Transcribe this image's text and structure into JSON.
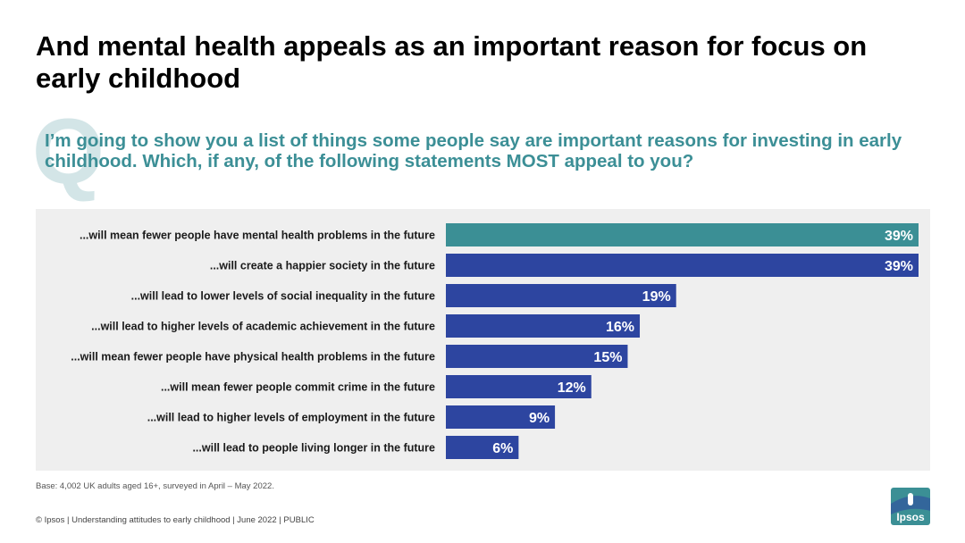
{
  "title": "And mental health appeals as an important reason for focus on early childhood",
  "question_mark": "Q",
  "question": "I’m going to show you a list of things some people say are important reasons for investing in early childhood. Which, if any, of the following statements MOST appeal to you?",
  "base_note": "Base: 4,002 UK adults aged 16+, surveyed in April – May 2022.",
  "footer": "© Ipsos | Understanding attitudes to early childhood | June 2022 | PUBLIC",
  "logo_text": "Ipsos",
  "colors": {
    "highlight_bar": "#3b8f95",
    "bar": "#2d45a0",
    "panel": "#efefef",
    "logo_bg": "#3b8f95",
    "logo_band": "#2d45a0"
  },
  "chart_data": {
    "type": "bar",
    "orientation": "horizontal",
    "categories": [
      "...will mean fewer people have mental health problems in the future",
      "...will create a happier society in the future",
      "...will lead to lower levels of social inequality in the future",
      "...will lead to higher levels of academic achievement in the future",
      "...will mean fewer people have physical health problems in the future",
      "...will mean fewer people commit crime in the future",
      "...will lead to higher levels of employment in the future",
      "...will lead to people living longer in the future"
    ],
    "values": [
      39,
      39,
      19,
      16,
      15,
      12,
      9,
      6
    ],
    "value_labels": [
      "39%",
      "39%",
      "19%",
      "16%",
      "15%",
      "12%",
      "9%",
      "6%"
    ],
    "highlight_index": 0,
    "xlim": [
      0,
      39
    ],
    "grid": false,
    "legend": "none"
  }
}
